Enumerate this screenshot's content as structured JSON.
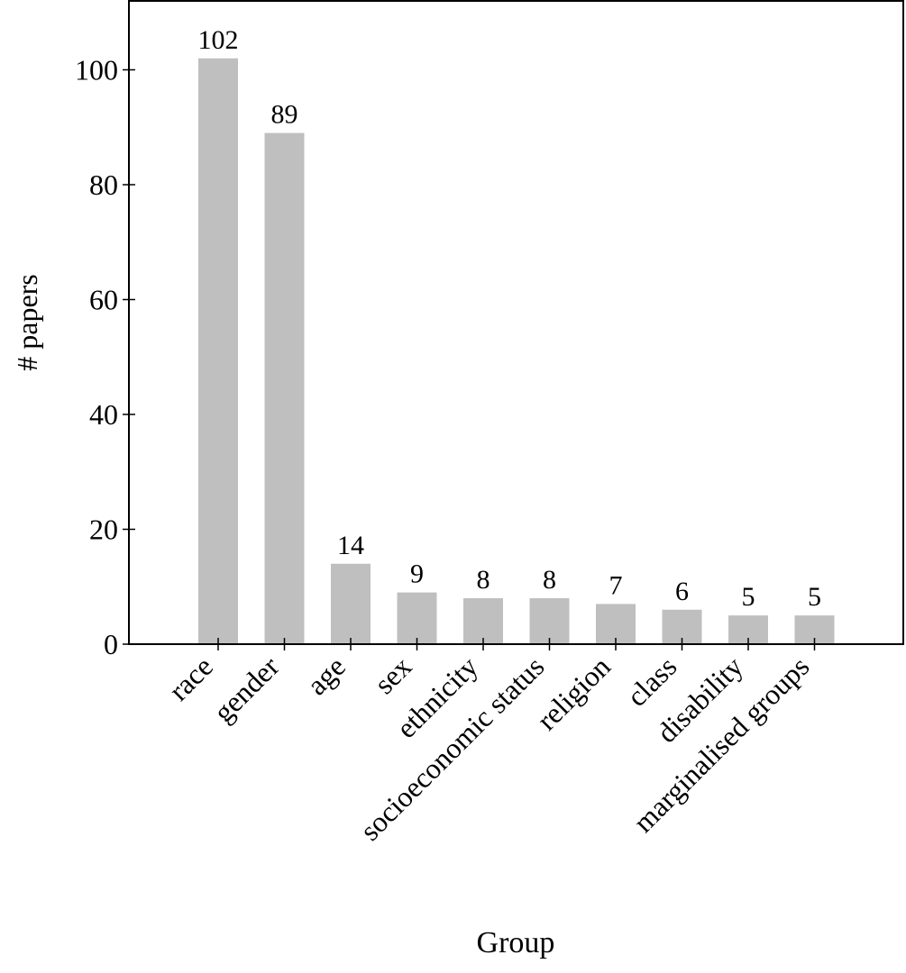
{
  "chart_data": {
    "type": "bar",
    "title": "",
    "xlabel": "Group",
    "ylabel": "# papers",
    "categories": [
      "race",
      "gender",
      "age",
      "sex",
      "ethnicity",
      "socioeconomic status",
      "religion",
      "class",
      "disability",
      "marginalised groups"
    ],
    "values": [
      102,
      89,
      14,
      9,
      8,
      8,
      7,
      6,
      5,
      5
    ],
    "data_labels": [
      "102",
      "89",
      "14",
      "9",
      "8",
      "8",
      "7",
      "6",
      "5",
      "5"
    ],
    "y_ticks": [
      0,
      20,
      40,
      60,
      80,
      100
    ],
    "y_tick_labels": [
      "0",
      "20",
      "40",
      "60",
      "80",
      "100"
    ],
    "ylim": [
      0,
      112
    ],
    "grid": false,
    "legend": "none",
    "bar_color": "#bfbfbf",
    "axis_color": "#000000"
  }
}
